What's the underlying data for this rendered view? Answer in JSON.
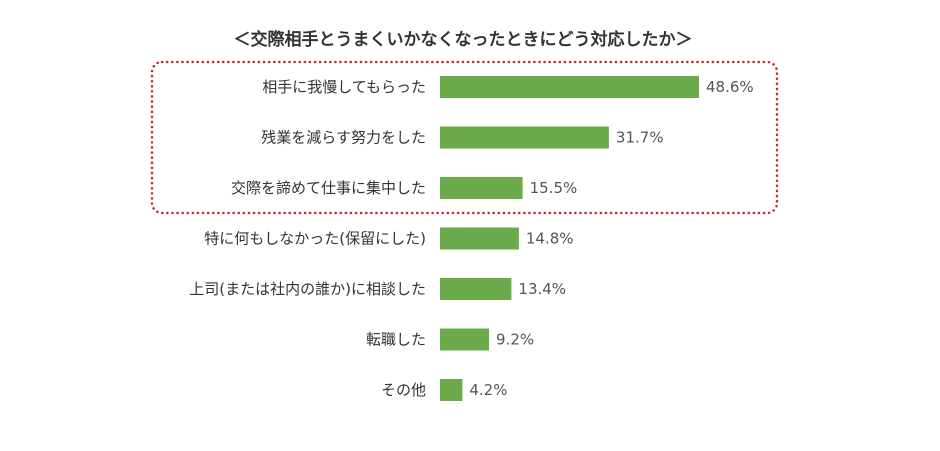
{
  "chart_data": {
    "type": "bar",
    "orientation": "horizontal",
    "title": "＜交際相手とうまくいかなくなったときにどう対応したか＞",
    "categories": [
      "相手に我慢してもらった",
      "残業を減らす努力をした",
      "交際を諦めて仕事に集中した",
      "特に何もしなかった(保留にした)",
      "上司(または社内の誰か)に相談した",
      "転職した",
      "その他"
    ],
    "values": [
      48.6,
      31.7,
      15.5,
      14.8,
      13.4,
      9.2,
      4.2
    ],
    "value_labels": [
      "48.6%",
      "31.7%",
      "15.5%",
      "14.8%",
      "13.4%",
      "9.2%",
      "4.2%"
    ],
    "unit": "%",
    "xlim": [
      0,
      50
    ],
    "grid": false,
    "highlighted_categories": [
      0,
      1,
      2
    ],
    "colors": {
      "bar": "#6aaa4a",
      "highlight_border": "#c0282d"
    }
  }
}
